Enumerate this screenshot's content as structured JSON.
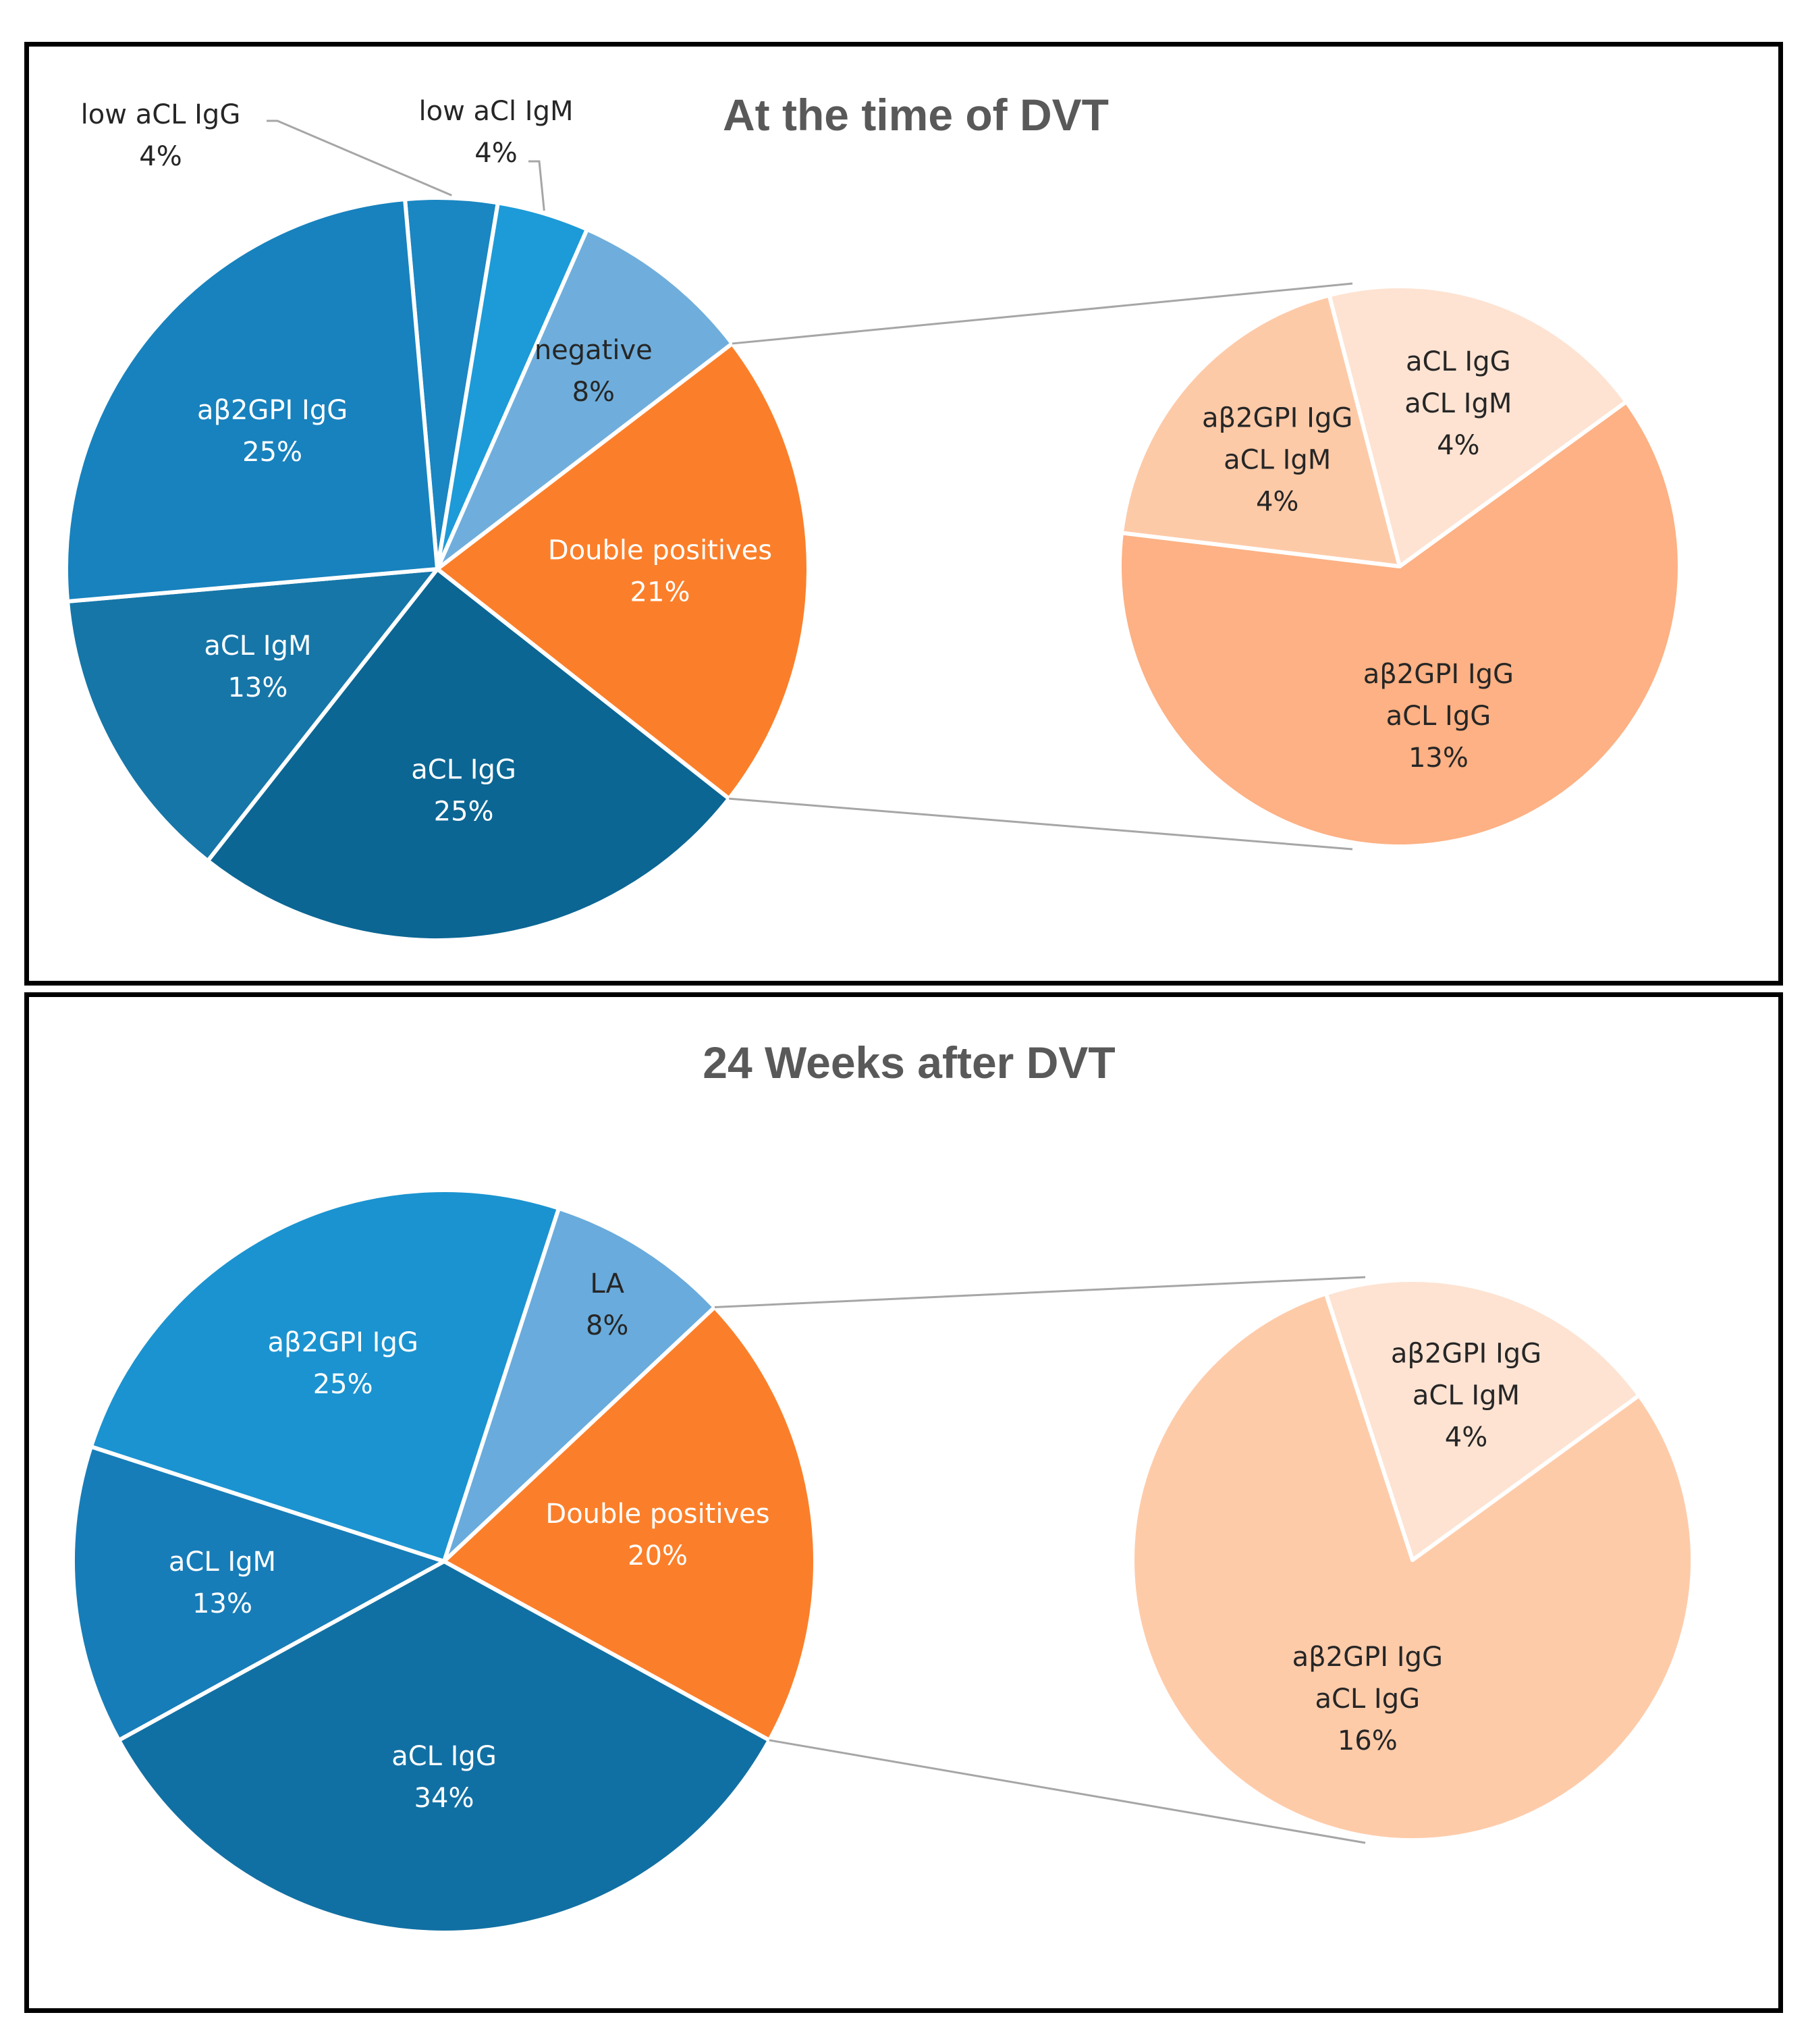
{
  "chart_data": [
    {
      "type": "pie",
      "variant": "pie-of-pie",
      "title": "At the time of DVT",
      "slices": [
        {
          "label": "low aCL IgG",
          "value": 4,
          "value_label": "4%",
          "color": "#1A86C2"
        },
        {
          "label": "low aCl IgM",
          "value": 4,
          "value_label": "4%",
          "color": "#1C9BD8"
        },
        {
          "label": "negative",
          "value": 8,
          "value_label": "8%",
          "color": "#6FAEDC"
        },
        {
          "label": "Double positives",
          "value": 21,
          "value_label": "21%",
          "color": "#FB7F2A"
        },
        {
          "label": "aCL IgG",
          "value": 25,
          "value_label": "25%",
          "color": "#0B6694"
        },
        {
          "label": "aCL IgM",
          "value": 13,
          "value_label": "13%",
          "color": "#1676A8"
        },
        {
          "label": "aβ2GPI IgG",
          "value": 25,
          "value_label": "25%",
          "color": "#1782BE"
        }
      ],
      "secondary_pie": {
        "parent": "Double positives",
        "slices": [
          {
            "label": "aβ2GPI IgG\naCL IgG",
            "lines": [
              "aβ2GPI IgG",
              "aCL IgG"
            ],
            "value": 13,
            "value_label": "13%",
            "color": "#FDB184"
          },
          {
            "label": "aβ2GPI IgG\naCL IgM",
            "lines": [
              "aβ2GPI IgG",
              "aCL IgM"
            ],
            "value": 4,
            "value_label": "4%",
            "color": "#FDCAA8"
          },
          {
            "label": "aCL IgG\naCL IgM",
            "lines": [
              "aCL IgG",
              "aCL IgM"
            ],
            "value": 4,
            "value_label": "4%",
            "color": "#FEE3D2"
          }
        ]
      }
    },
    {
      "type": "pie",
      "variant": "pie-of-pie",
      "title": "24 Weeks after DVT",
      "slices": [
        {
          "label": "LA",
          "value": 8,
          "value_label": "8%",
          "color": "#69ABDC"
        },
        {
          "label": "Double positives",
          "value": 20,
          "value_label": "20%",
          "color": "#FB7F2A"
        },
        {
          "label": "aCL IgG",
          "value": 34,
          "value_label": "34%",
          "color": "#1170A3"
        },
        {
          "label": "aCL IgM",
          "value": 13,
          "value_label": "13%",
          "color": "#177DB8"
        },
        {
          "label": "aβ2GPI IgG",
          "value": 25,
          "value_label": "25%",
          "color": "#1B93D0"
        }
      ],
      "secondary_pie": {
        "parent": "Double positives",
        "slices": [
          {
            "label": "aβ2GPI IgG\naCL IgG",
            "lines": [
              "aβ2GPI IgG",
              "aCL IgG"
            ],
            "value": 16,
            "value_label": "16%",
            "color": "#FECBA9"
          },
          {
            "label": "aβ2GPI IgG\naCL IgM",
            "lines": [
              "aβ2GPI IgG",
              "aCL IgM"
            ],
            "value": 4,
            "value_label": "4%",
            "color": "#FEE3D2"
          }
        ]
      }
    }
  ]
}
